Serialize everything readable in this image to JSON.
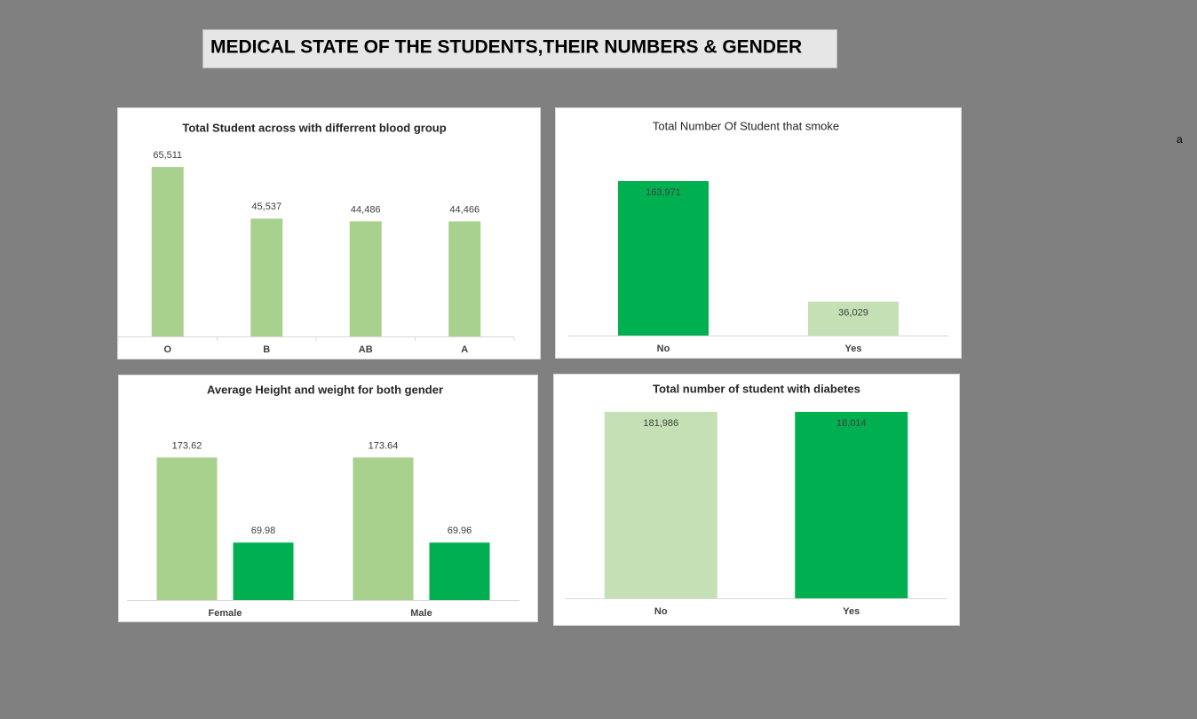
{
  "header": {
    "title": "MEDICAL STATE OF THE STUDENTS,THEIR NUMBERS & GENDER"
  },
  "note": "a",
  "chart_data": [
    {
      "type": "bar",
      "title": "Total Student across with differrent blood group",
      "categories": [
        "O",
        "B",
        "AB",
        "A"
      ],
      "values": [
        65511,
        45537,
        44486,
        44466
      ],
      "value_labels": [
        "65,511",
        "45,537",
        "44,486",
        "44,466"
      ],
      "color": "#a9d18e",
      "ylim": [
        0,
        70000
      ],
      "label_position": "outside_end"
    },
    {
      "type": "bar",
      "title": "Total Number Of Student that smoke",
      "categories": [
        "No",
        "Yes"
      ],
      "values": [
        163971,
        36029
      ],
      "value_labels": [
        "163,971",
        "36,029"
      ],
      "colors": [
        "#00b050",
        "#c5e0b4"
      ],
      "ylim": [
        0,
        180000
      ],
      "label_position": "inside_end"
    },
    {
      "type": "grouped_bar",
      "title": "Average Height and weight for both gender",
      "categories": [
        "Female",
        "Male"
      ],
      "series": [
        {
          "color": "#a9d18e",
          "values": [
            173.62,
            173.64
          ]
        },
        {
          "color": "#00b050",
          "values": [
            69.98,
            69.96
          ]
        }
      ],
      "ylim": [
        0,
        200
      ],
      "label_position": "outside_end"
    },
    {
      "type": "stacked_percent_bar",
      "title": "Total number of student with diabetes",
      "categories": [
        "No",
        "Yes"
      ],
      "series": [
        {
          "color": "#c5e0b4",
          "values": [
            181986,
            null
          ],
          "value_labels": [
            "181,986",
            null
          ]
        },
        {
          "color": "#00b050",
          "values": [
            null,
            18014
          ],
          "value_labels": [
            null,
            "18,014"
          ]
        }
      ],
      "ylim": [
        0,
        100
      ],
      "label_position": "inside_end"
    }
  ]
}
